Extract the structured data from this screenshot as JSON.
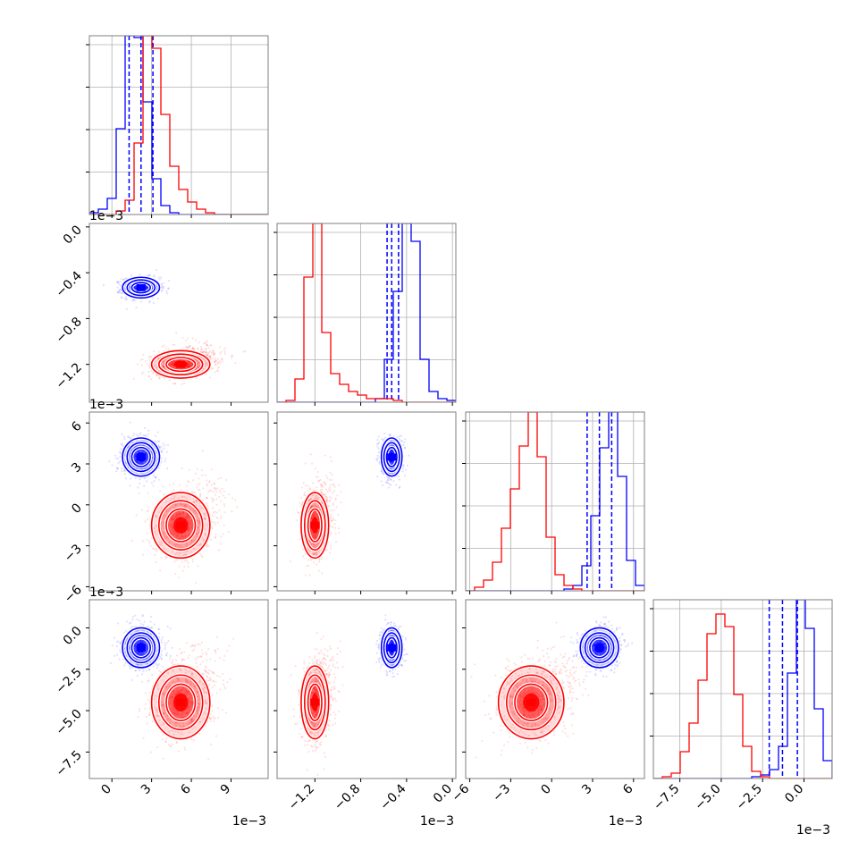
{
  "chart_data": {
    "type": "corner",
    "title": "",
    "params": [
      {
        "id": "p1",
        "lim": [
          -0.0017,
          0.0118
        ],
        "ticks": [
          0,
          0.003,
          0.006,
          0.009
        ],
        "tick_labels": [
          "0",
          "3",
          "6",
          "9"
        ],
        "offset_label": "1e−3"
      },
      {
        "id": "p2",
        "lim": [
          -0.00153,
          3e-05
        ],
        "ticks": [
          -0.0012,
          -0.0008,
          -0.0004,
          0.0
        ],
        "tick_labels": [
          "−1.2",
          "−0.8",
          "−0.4",
          "0.0"
        ],
        "offset_label": "1e−3"
      },
      {
        "id": "p3",
        "lim": [
          -0.0063,
          0.0068
        ],
        "ticks": [
          -0.006,
          -0.003,
          0,
          0.003,
          0.006
        ],
        "tick_labels": [
          "−6",
          "−3",
          "0",
          "3",
          "6"
        ],
        "offset_label": "1e−3"
      },
      {
        "id": "p4",
        "lim": [
          -0.0091,
          0.0017
        ],
        "ticks": [
          -0.0075,
          -0.005,
          -0.0025,
          0.0
        ],
        "tick_labels": [
          "−7.5",
          "−5.0",
          "−2.5",
          "0.0"
        ],
        "offset_label": "1e−3"
      }
    ],
    "series": [
      {
        "name": "blue",
        "color": "#0000ff",
        "means": [
          0.0022,
          -0.00053,
          0.0035,
          -0.0012
        ],
        "sds": [
          0.0007,
          4.5e-05,
          0.0007,
          0.0006
        ],
        "quantiles": [
          [
            0.0013,
            0.0022,
            0.0031
          ],
          [
            -0.00057,
            -0.00053,
            -0.00047
          ],
          [
            0.0026,
            0.0035,
            0.0044
          ],
          [
            -0.0021,
            -0.0013,
            -0.0004
          ]
        ],
        "hists": [
          [
            1,
            3,
            9,
            48,
            100,
            99,
            63,
            20,
            5,
            1,
            0,
            0,
            0,
            0,
            0,
            0,
            0,
            0,
            0,
            0
          ],
          [
            0,
            0,
            0,
            0,
            0,
            0,
            0,
            0,
            0,
            0,
            0,
            2,
            24,
            62,
            100,
            90,
            24,
            6,
            2,
            1
          ],
          [
            0,
            0,
            0,
            0,
            0,
            0,
            0,
            0,
            0,
            0,
            0,
            1,
            3,
            14,
            42,
            80,
            100,
            64,
            17,
            3
          ],
          [
            0,
            0,
            0,
            0,
            0,
            0,
            0,
            0,
            0,
            0,
            0,
            1,
            2,
            5,
            18,
            59,
            100,
            84,
            39,
            10
          ]
        ]
      },
      {
        "name": "red",
        "color": "#ff0000",
        "means": [
          0.0052,
          -0.0012,
          -0.0015,
          -0.0045
        ],
        "sds": [
          0.0011,
          6e-05,
          0.0012,
          0.0011
        ],
        "quantiles": [],
        "hists": [
          [
            0,
            0,
            0,
            2,
            8,
            40,
            100,
            93,
            56,
            27,
            14,
            7,
            3,
            1,
            0,
            0,
            0,
            0,
            0,
            0
          ],
          [
            0,
            1,
            13,
            70,
            100,
            39,
            16,
            10,
            6,
            4,
            2,
            2,
            2,
            1,
            0,
            0,
            0,
            0,
            0,
            0
          ],
          [
            0,
            2,
            6,
            16,
            35,
            57,
            81,
            100,
            75,
            30,
            9,
            3,
            1,
            0,
            0,
            0,
            0,
            0,
            0,
            0
          ],
          [
            0,
            1,
            3,
            15,
            31,
            55,
            81,
            92,
            85,
            47,
            18,
            4,
            1,
            0,
            0,
            0,
            0,
            0,
            0,
            0
          ]
        ]
      }
    ]
  }
}
